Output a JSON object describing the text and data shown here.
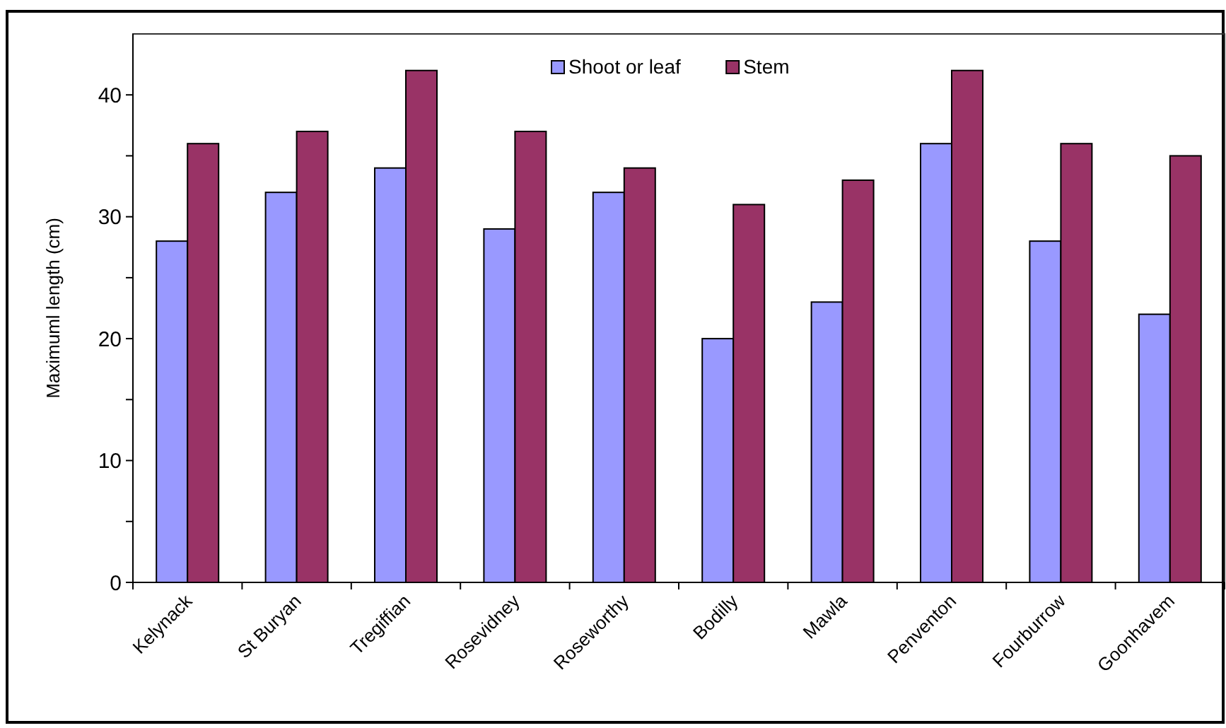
{
  "chart_data": {
    "type": "bar",
    "ylabel": "Maximuml length (cm)",
    "categories": [
      "Kelynack",
      "St Buryan",
      "Tregiffian",
      "Rosevidney",
      "Roseworthy",
      "Bodilly",
      "Mawla",
      "Penventon",
      "Fourburrow",
      "Goonhavem"
    ],
    "series": [
      {
        "name": "Shoot or leaf",
        "color": "#9999ff",
        "values": [
          28,
          32,
          34,
          29,
          32,
          20,
          23,
          36,
          28,
          22
        ]
      },
      {
        "name": "Stem",
        "color": "#993366",
        "values": [
          36,
          37,
          42,
          37,
          34,
          31,
          33,
          42,
          36,
          35
        ]
      }
    ],
    "ylim": [
      0,
      45
    ],
    "yticks": [
      0,
      {
        "value": 5,
        "label": null
      },
      10,
      {
        "value": 15,
        "label": null
      },
      20,
      {
        "value": 25,
        "label": null
      },
      30,
      {
        "value": 35,
        "label": null
      },
      40
    ],
    "grid": false,
    "legend": "top"
  }
}
